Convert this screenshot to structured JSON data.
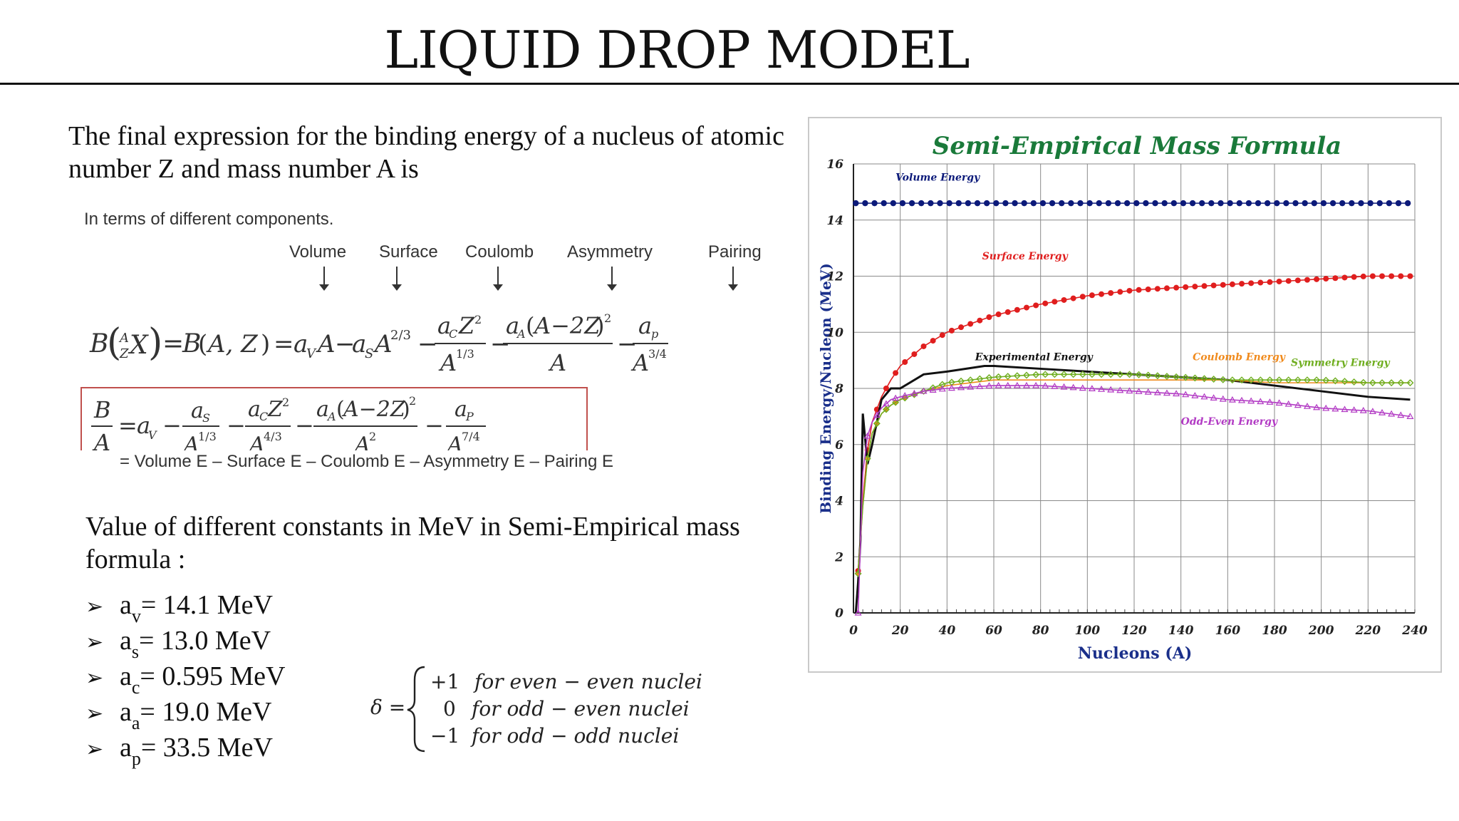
{
  "slide": {
    "title": "LIQUID DROP MODEL",
    "intro": "The final expression for the binding energy of a nucleus of atomic number Z and mass number A is",
    "components_title": "In terms of different components.",
    "components": [
      "Volume",
      "Surface",
      "Coulomb",
      "Asymmetry",
      "Pairing"
    ],
    "summary_line": "= Volume E – Surface E – Coulomb E – Asymmetry E – Pairing E",
    "constants_title": "Value of different constants in MeV in Semi-Empirical mass formula :",
    "constants": [
      {
        "sym": "a",
        "sub": "v",
        "value": " = 14.1 MeV"
      },
      {
        "sym": "a",
        "sub": "s",
        "value": " = 13.0 MeV"
      },
      {
        "sym": "a",
        "sub": "c",
        "value": " = 0.595 MeV"
      },
      {
        "sym": "a",
        "sub": "a",
        "value": " = 19.0 MeV"
      },
      {
        "sym": "a",
        "sub": "p",
        "value": " = 33.5 MeV"
      }
    ],
    "delta": {
      "lhs": "δ =",
      "cases": [
        {
          "value": "+1",
          "text": "for even − even nuclei"
        },
        {
          "value": "0",
          "text": "for odd − even nuclei"
        },
        {
          "value": "−1",
          "text": "for odd − odd nuclei"
        }
      ]
    }
  },
  "chart_data": {
    "type": "line",
    "title": "Semi-Empirical Mass Formula",
    "xlabel": "Nucleons (A)",
    "ylabel": "Binding Energy/Nucleon (MeV)",
    "xlim": [
      0,
      240
    ],
    "ylim": [
      0,
      16
    ],
    "xticks": [
      0,
      20,
      40,
      60,
      80,
      100,
      120,
      140,
      160,
      180,
      200,
      220,
      240
    ],
    "yticks": [
      0,
      2,
      4,
      6,
      8,
      10,
      12,
      14,
      16
    ],
    "grid": true,
    "colors": {
      "title": "#1a7a3a",
      "axis_label": "#1a2f8a",
      "volume": "#0c1a7a",
      "surface": "#e01e1e",
      "experimental": "#111111",
      "coulomb": "#f08a1c",
      "symmetry": "#6fae1f",
      "odd_even": "#b23bc4"
    },
    "series": [
      {
        "name": "Volume Energy",
        "key": "volume",
        "x": [
          1,
          20,
          40,
          60,
          80,
          100,
          120,
          140,
          160,
          180,
          200,
          220,
          238
        ],
        "y": [
          14.6,
          14.6,
          14.6,
          14.6,
          14.6,
          14.6,
          14.6,
          14.6,
          14.6,
          14.6,
          14.6,
          14.6,
          14.6
        ]
      },
      {
        "name": "Surface Energy",
        "key": "surface",
        "x": [
          2,
          4,
          6,
          8,
          12,
          16,
          20,
          30,
          40,
          60,
          80,
          100,
          120,
          140,
          160,
          180,
          200,
          220,
          238
        ],
        "y": [
          1.5,
          4.0,
          5.8,
          6.8,
          7.7,
          8.3,
          8.8,
          9.5,
          10.0,
          10.6,
          11.0,
          11.3,
          11.5,
          11.6,
          11.7,
          11.8,
          11.9,
          12.0,
          12.0
        ]
      },
      {
        "name": "Experimental Energy",
        "key": "experimental",
        "x": [
          1,
          2,
          3,
          4,
          6,
          8,
          12,
          16,
          20,
          30,
          40,
          56,
          60,
          80,
          100,
          120,
          140,
          160,
          180,
          200,
          220,
          238
        ],
        "y": [
          0,
          1.1,
          2.6,
          7.1,
          5.3,
          6.0,
          7.6,
          8.0,
          8.0,
          8.5,
          8.6,
          8.8,
          8.8,
          8.7,
          8.6,
          8.5,
          8.4,
          8.3,
          8.1,
          7.9,
          7.7,
          7.6
        ]
      },
      {
        "name": "Coulomb Energy",
        "key": "coulomb",
        "x": [
          2,
          4,
          6,
          8,
          12,
          16,
          20,
          30,
          40,
          60,
          80,
          100,
          120,
          140,
          160,
          180,
          200,
          220,
          238
        ],
        "y": [
          1.4,
          3.8,
          5.5,
          6.4,
          7.1,
          7.4,
          7.6,
          7.9,
          8.1,
          8.3,
          8.3,
          8.3,
          8.3,
          8.3,
          8.3,
          8.2,
          8.2,
          8.2,
          8.2
        ]
      },
      {
        "name": "Symmetry Energy",
        "key": "symmetry",
        "x": [
          2,
          4,
          6,
          8,
          12,
          16,
          20,
          30,
          40,
          60,
          80,
          100,
          120,
          140,
          160,
          180,
          200,
          220,
          238
        ],
        "y": [
          1.4,
          3.8,
          5.5,
          6.4,
          7.1,
          7.4,
          7.6,
          7.9,
          8.2,
          8.4,
          8.5,
          8.5,
          8.5,
          8.4,
          8.3,
          8.3,
          8.3,
          8.2,
          8.2
        ]
      },
      {
        "name": "Odd-Even Energy",
        "key": "odd_even",
        "x": [
          2,
          4,
          6,
          8,
          12,
          16,
          20,
          30,
          40,
          60,
          80,
          100,
          120,
          140,
          160,
          180,
          200,
          220,
          238
        ],
        "y": [
          0.0,
          5.0,
          6.3,
          6.8,
          7.3,
          7.6,
          7.7,
          7.9,
          8.0,
          8.1,
          8.1,
          8.0,
          7.9,
          7.8,
          7.6,
          7.5,
          7.3,
          7.2,
          7.0
        ]
      }
    ],
    "annotations": [
      {
        "text": "Volume Energy",
        "key": "volume",
        "x": 18,
        "y": 15.4
      },
      {
        "text": "Surface Energy",
        "key": "surface",
        "x": 55,
        "y": 12.6
      },
      {
        "text": "Experimental Energy",
        "key": "experimental",
        "x": 52,
        "y": 9.0
      },
      {
        "text": "Coulomb Energy",
        "key": "coulomb",
        "x": 145,
        "y": 9.0
      },
      {
        "text": "Symmetry Energy",
        "key": "symmetry",
        "x": 187,
        "y": 8.8
      },
      {
        "text": "Odd-Even Energy",
        "key": "odd_even",
        "x": 140,
        "y": 6.7
      }
    ]
  }
}
